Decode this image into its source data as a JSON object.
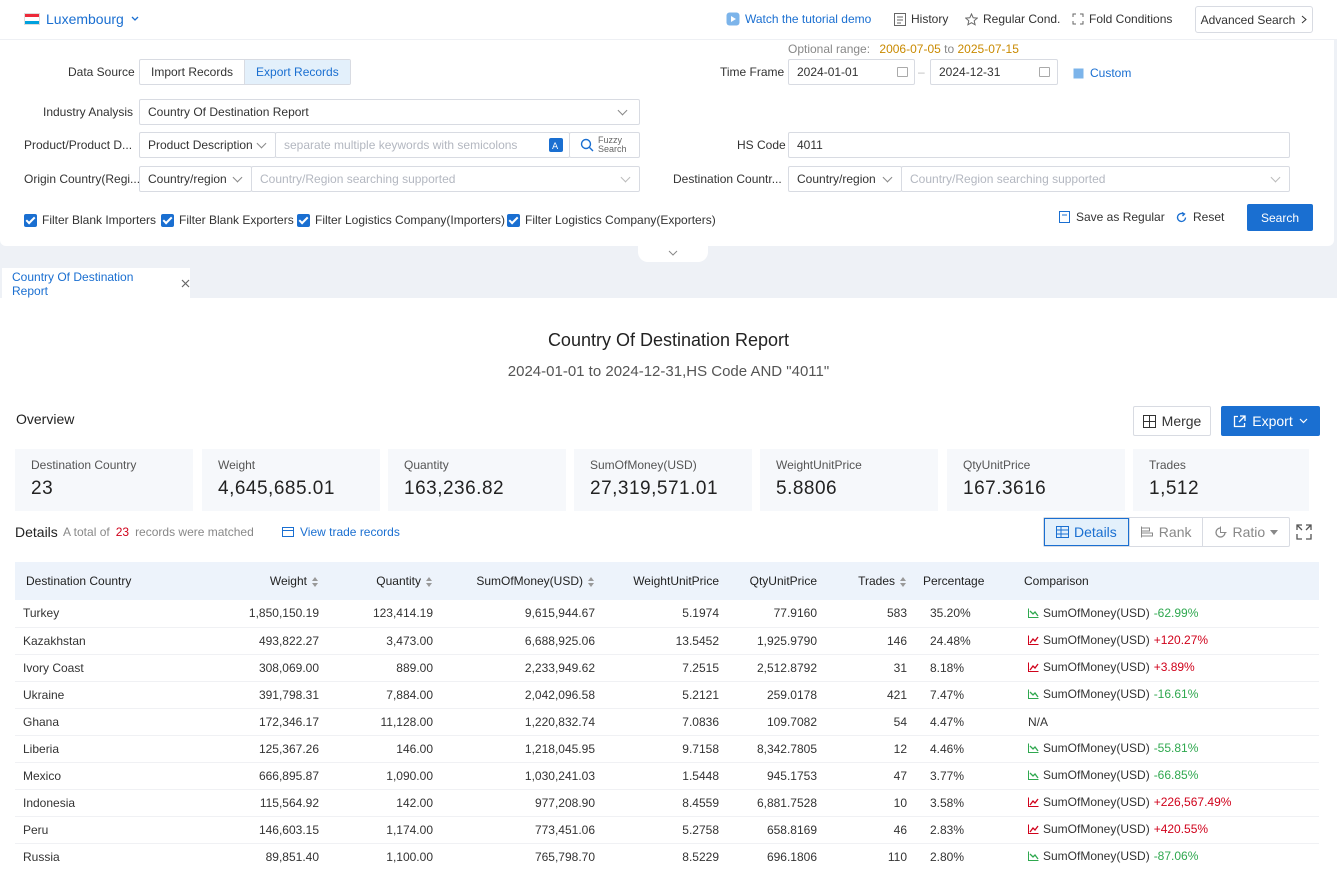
{
  "topbar": {
    "country": "Luxembourg",
    "tutorial": "Watch the tutorial demo",
    "history": "History",
    "regular_cond": "Regular Cond.",
    "fold_conditions": "Fold Conditions",
    "advanced_search": "Advanced Search"
  },
  "search": {
    "data_source_label": "Data Source",
    "import_records": "Import Records",
    "export_records": "Export Records",
    "industry_label": "Industry Analysis",
    "industry_value": "Country Of Destination Report",
    "product_label": "Product/Product D...",
    "product_type": "Product Description",
    "product_placeholder": "separate multiple keywords with semicolons",
    "fuzzy_1": "Fuzzy",
    "fuzzy_2": "Search",
    "origin_label": "Origin Country(Regi...",
    "origin_type": "Country/region",
    "origin_placeholder": "Country/Region searching supported",
    "optional_range_label": "Optional range:",
    "range_start": "2006-07-05",
    "range_to": "to",
    "range_end": "2025-07-15",
    "timeframe_label": "Time Frame",
    "date_from": "2024-01-01",
    "date_to": "2024-12-31",
    "custom": "Custom",
    "hs_label": "HS Code",
    "hs_value": "4011",
    "dest_label": "Destination Countr...",
    "dest_type": "Country/region",
    "dest_placeholder": "Country/Region searching supported",
    "filters": [
      "Filter Blank Importers",
      "Filter Blank Exporters",
      "Filter Logistics Company(Importers)",
      "Filter Logistics Company(Exporters)"
    ],
    "save_regular": "Save as Regular",
    "reset": "Reset",
    "search_btn": "Search"
  },
  "tab": {
    "label": "Country Of Destination Report"
  },
  "report": {
    "title": "Country Of Destination Report",
    "subtitle": "2024-01-01 to 2024-12-31,HS Code AND \"4011\"",
    "overview": "Overview",
    "merge": "Merge",
    "export": "Export"
  },
  "stats": [
    {
      "label": "Destination Country",
      "value": "23"
    },
    {
      "label": "Weight",
      "value": "4,645,685.01"
    },
    {
      "label": "Quantity",
      "value": "163,236.82"
    },
    {
      "label": "SumOfMoney(USD)",
      "value": "27,319,571.01"
    },
    {
      "label": "WeightUnitPrice",
      "value": "5.8806"
    },
    {
      "label": "QtyUnitPrice",
      "value": "167.3616"
    },
    {
      "label": "Trades",
      "value": "1,512"
    }
  ],
  "details": {
    "label": "Details",
    "total_prefix": "A total of",
    "total_count": "23",
    "total_suffix": "records were matched",
    "view_trade": "View trade records",
    "view_details": "Details",
    "view_rank": "Rank",
    "view_ratio": "Ratio"
  },
  "table": {
    "headers": [
      "Destination Country",
      "Weight",
      "Quantity",
      "SumOfMoney(USD)",
      "WeightUnitPrice",
      "QtyUnitPrice",
      "Trades",
      "Percentage",
      "Comparison"
    ],
    "rows": [
      {
        "country": "Turkey",
        "weight": "1,850,150.19",
        "quantity": "123,414.19",
        "sum": "9,615,944.67",
        "wup": "5.1974",
        "qup": "77.9160",
        "trades": "583",
        "pct": "35.20%",
        "cmp_label": "SumOfMoney(USD)",
        "cmp_val": "-62.99%",
        "dir": "down"
      },
      {
        "country": "Kazakhstan",
        "weight": "493,822.27",
        "quantity": "3,473.00",
        "sum": "6,688,925.06",
        "wup": "13.5452",
        "qup": "1,925.9790",
        "trades": "146",
        "pct": "24.48%",
        "cmp_label": "SumOfMoney(USD)",
        "cmp_val": "+120.27%",
        "dir": "up"
      },
      {
        "country": "Ivory Coast",
        "weight": "308,069.00",
        "quantity": "889.00",
        "sum": "2,233,949.62",
        "wup": "7.2515",
        "qup": "2,512.8792",
        "trades": "31",
        "pct": "8.18%",
        "cmp_label": "SumOfMoney(USD)",
        "cmp_val": "+3.89%",
        "dir": "up"
      },
      {
        "country": "Ukraine",
        "weight": "391,798.31",
        "quantity": "7,884.00",
        "sum": "2,042,096.58",
        "wup": "5.2121",
        "qup": "259.0178",
        "trades": "421",
        "pct": "7.47%",
        "cmp_label": "SumOfMoney(USD)",
        "cmp_val": "-16.61%",
        "dir": "down"
      },
      {
        "country": "Ghana",
        "weight": "172,346.17",
        "quantity": "11,128.00",
        "sum": "1,220,832.74",
        "wup": "7.0836",
        "qup": "109.7082",
        "trades": "54",
        "pct": "4.47%",
        "cmp_label": "N/A",
        "cmp_val": "",
        "dir": "none"
      },
      {
        "country": "Liberia",
        "weight": "125,367.26",
        "quantity": "146.00",
        "sum": "1,218,045.95",
        "wup": "9.7158",
        "qup": "8,342.7805",
        "trades": "12",
        "pct": "4.46%",
        "cmp_label": "SumOfMoney(USD)",
        "cmp_val": "-55.81%",
        "dir": "down"
      },
      {
        "country": "Mexico",
        "weight": "666,895.87",
        "quantity": "1,090.00",
        "sum": "1,030,241.03",
        "wup": "1.5448",
        "qup": "945.1753",
        "trades": "47",
        "pct": "3.77%",
        "cmp_label": "SumOfMoney(USD)",
        "cmp_val": "-66.85%",
        "dir": "down"
      },
      {
        "country": "Indonesia",
        "weight": "115,564.92",
        "quantity": "142.00",
        "sum": "977,208.90",
        "wup": "8.4559",
        "qup": "6,881.7528",
        "trades": "10",
        "pct": "3.58%",
        "cmp_label": "SumOfMoney(USD)",
        "cmp_val": "+226,567.49%",
        "dir": "up"
      },
      {
        "country": "Peru",
        "weight": "146,603.15",
        "quantity": "1,174.00",
        "sum": "773,451.06",
        "wup": "5.2758",
        "qup": "658.8169",
        "trades": "46",
        "pct": "2.83%",
        "cmp_label": "SumOfMoney(USD)",
        "cmp_val": "+420.55%",
        "dir": "up"
      },
      {
        "country": "Russia",
        "weight": "89,851.40",
        "quantity": "1,100.00",
        "sum": "765,798.70",
        "wup": "8.5229",
        "qup": "696.1806",
        "trades": "110",
        "pct": "2.80%",
        "cmp_label": "SumOfMoney(USD)",
        "cmp_val": "-87.06%",
        "dir": "down"
      }
    ]
  },
  "colors": {
    "accent": "#1a6fd1",
    "up": "#d0021b",
    "down": "#2fa84f",
    "range": "#c98a00"
  },
  "icons": [
    "flag-icon",
    "play-icon",
    "history-icon",
    "star-icon",
    "fold-icon",
    "calendar-icon",
    "fuzzy-search-icon",
    "save-icon",
    "reset-icon",
    "close-icon",
    "merge-icon",
    "export-icon",
    "trade-records-icon",
    "details-icon",
    "rank-icon",
    "ratio-icon",
    "expand-icon",
    "trend-icon"
  ]
}
